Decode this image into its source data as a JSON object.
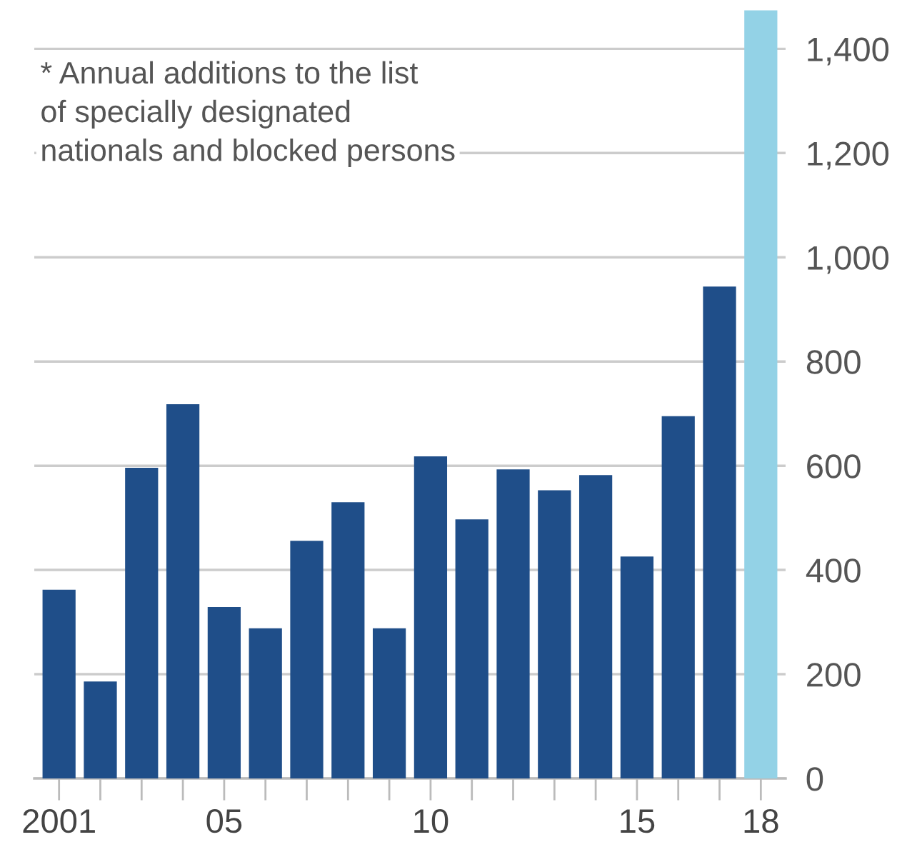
{
  "chart_data": {
    "type": "bar",
    "categories": [
      "2001",
      null,
      null,
      null,
      "05",
      null,
      null,
      null,
      null,
      "10",
      null,
      null,
      null,
      null,
      "15",
      null,
      null,
      "18"
    ],
    "values": [
      362,
      186,
      596,
      718,
      329,
      288,
      456,
      530,
      288,
      618,
      497,
      593,
      553,
      582,
      426,
      695,
      944,
      1474
    ],
    "colors": [
      "#1f4e89",
      "#1f4e89",
      "#1f4e89",
      "#1f4e89",
      "#1f4e89",
      "#1f4e89",
      "#1f4e89",
      "#1f4e89",
      "#1f4e89",
      "#1f4e89",
      "#1f4e89",
      "#1f4e89",
      "#1f4e89",
      "#1f4e89",
      "#1f4e89",
      "#1f4e89",
      "#1f4e89",
      "#93d2e6"
    ],
    "ylim": [
      0,
      1480
    ],
    "yticks": [
      0,
      {
        "value": 200,
        "label": "200"
      },
      {
        "value": 400,
        "label": "400"
      },
      {
        "value": 600,
        "label": "600"
      },
      {
        "value": 800,
        "label": "800"
      },
      {
        "value": 1000,
        "label": "1,000"
      },
      {
        "value": 1200,
        "label": "1,200"
      },
      {
        "value": 1400,
        "label": "1,400"
      }
    ],
    "grid": "y",
    "annotations": [
      "* Annual additions to the list\nof specially designated\nnationals and blocked persons"
    ]
  }
}
